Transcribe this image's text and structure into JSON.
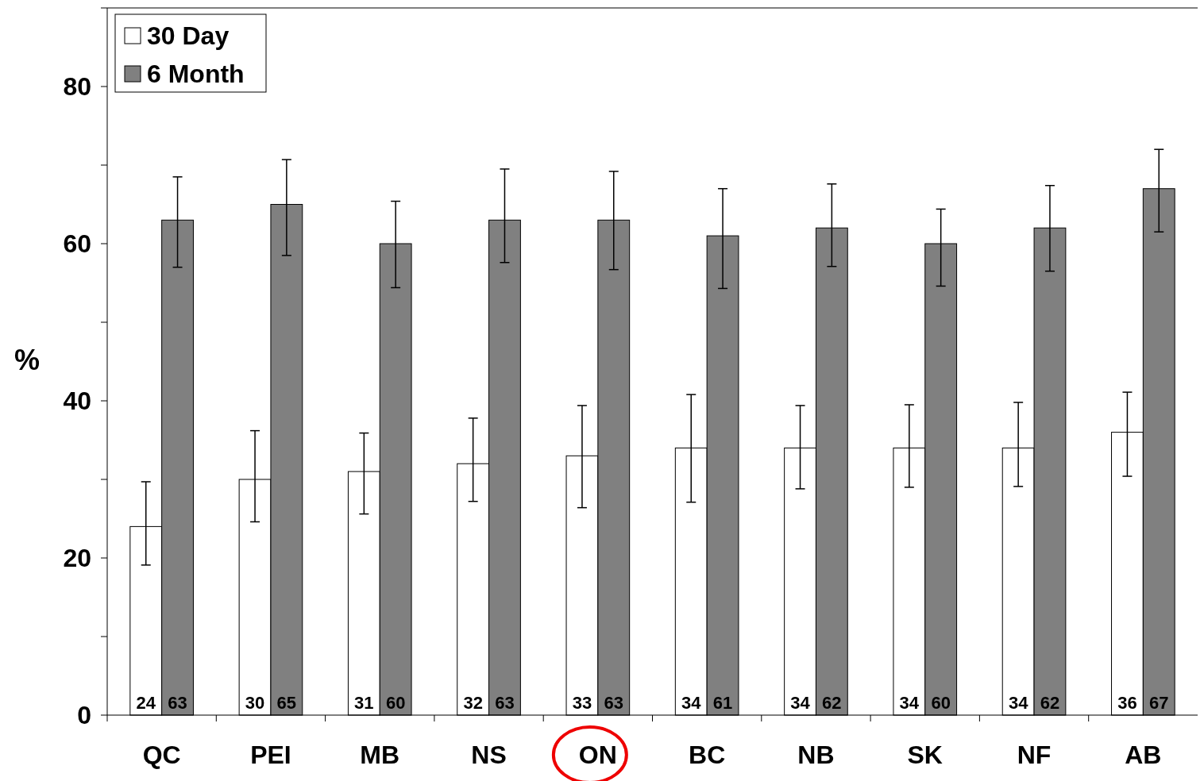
{
  "chart_data": {
    "type": "bar",
    "ylabel": "%",
    "categories": [
      "QC",
      "PEI",
      "MB",
      "NS",
      "ON",
      "BC",
      "NB",
      "SK",
      "NF",
      "AB"
    ],
    "series": [
      {
        "name": "30 Day",
        "color": "#ffffff",
        "values": [
          24,
          30,
          31,
          32,
          33,
          34,
          34,
          34,
          34,
          36
        ],
        "errors": [
          [
            19.1,
            29.7
          ],
          [
            24.6,
            36.2
          ],
          [
            25.6,
            35.9
          ],
          [
            27.2,
            37.8
          ],
          [
            26.4,
            39.4
          ],
          [
            27.1,
            40.8
          ],
          [
            28.8,
            39.4
          ],
          [
            29.0,
            39.5
          ],
          [
            29.1,
            39.8
          ],
          [
            30.4,
            41.1
          ]
        ]
      },
      {
        "name": "6 Month",
        "color": "#808080",
        "values": [
          63,
          65,
          60,
          63,
          63,
          61,
          62,
          60,
          62,
          67
        ],
        "errors": [
          [
            57.0,
            68.5
          ],
          [
            58.5,
            70.7
          ],
          [
            54.4,
            65.4
          ],
          [
            57.6,
            69.5
          ],
          [
            56.7,
            69.2
          ],
          [
            54.3,
            67.0
          ],
          [
            57.1,
            67.6
          ],
          [
            54.6,
            64.4
          ],
          [
            56.5,
            67.4
          ],
          [
            61.5,
            72.0
          ]
        ]
      }
    ],
    "ylim": [
      0,
      90
    ],
    "yticks": [
      0,
      {
        "value": 10,
        "label": null
      },
      20,
      {
        "value": 30,
        "label": null
      },
      40,
      {
        "value": 50,
        "label": null
      },
      60,
      {
        "value": 70,
        "label": null
      },
      80,
      {
        "value": 90,
        "label": null
      }
    ],
    "data_labels": true,
    "grid": false,
    "legend": "top left"
  }
}
